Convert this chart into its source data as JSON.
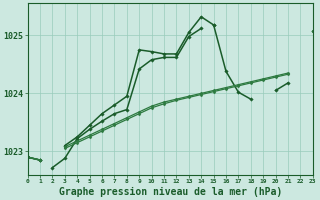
{
  "background_color": "#cce8e0",
  "grid_color": "#99ccbb",
  "line_color_dark": "#1a5c2a",
  "line_color_mid": "#2d7a40",
  "xlabel": "Graphe pression niveau de la mer (hPa)",
  "xlabel_fontsize": 7,
  "yticks": [
    1023,
    1024,
    1025
  ],
  "ylim": [
    1022.6,
    1025.55
  ],
  "xlim": [
    0,
    23
  ],
  "s1": [
    1022.9,
    1022.85,
    null,
    1023.1,
    1023.25,
    1023.45,
    1023.65,
    1023.8,
    1023.95,
    1024.75,
    1024.72,
    1024.68,
    1024.68,
    1025.05,
    1025.32,
    1025.18,
    null,
    null,
    null,
    null,
    null,
    null,
    null,
    null
  ],
  "s2": [
    null,
    null,
    1022.72,
    1022.88,
    1023.22,
    1023.38,
    1023.52,
    1023.65,
    1023.72,
    1024.42,
    1024.58,
    1024.62,
    1024.62,
    1024.98,
    1025.12,
    null,
    null,
    null,
    null,
    null,
    null,
    null,
    null,
    null
  ],
  "s3": [
    1022.9,
    1022.85,
    null,
    null,
    null,
    null,
    null,
    null,
    null,
    null,
    null,
    null,
    null,
    null,
    null,
    1025.18,
    1024.38,
    1024.02,
    1023.9,
    null,
    1024.05,
    1024.18,
    null,
    1025.08
  ],
  "s4": [
    1022.9,
    1022.85,
    null,
    1023.05,
    1023.15,
    1023.25,
    1023.35,
    1023.45,
    1023.55,
    1023.65,
    1023.75,
    1023.82,
    1023.88,
    1023.93,
    1023.98,
    1024.03,
    1024.08,
    1024.13,
    1024.18,
    1024.23,
    1024.28,
    1024.33,
    null,
    1025.08
  ],
  "s5": [
    1022.9,
    1022.85,
    null,
    1023.08,
    1023.18,
    1023.28,
    1023.38,
    1023.48,
    1023.58,
    1023.68,
    1023.78,
    1023.85,
    1023.9,
    1023.95,
    1024.0,
    1024.05,
    1024.1,
    1024.15,
    1024.2,
    1024.25,
    1024.3,
    1024.35,
    null,
    1025.08
  ]
}
